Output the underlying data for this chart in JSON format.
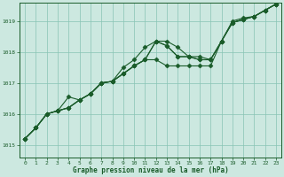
{
  "background_color": "#cce8e0",
  "grid_color": "#88c4b4",
  "line_color": "#1a5c2a",
  "text_color": "#1a5c2a",
  "xlabel": "Graphe pression niveau de la mer (hPa)",
  "xlim": [
    -0.5,
    23.5
  ],
  "ylim": [
    1014.6,
    1019.6
  ],
  "yticks": [
    1015,
    1016,
    1017,
    1018,
    1019
  ],
  "xticks": [
    0,
    1,
    2,
    3,
    4,
    5,
    6,
    7,
    8,
    9,
    10,
    11,
    12,
    13,
    14,
    15,
    16,
    17,
    18,
    19,
    20,
    21,
    22,
    23
  ],
  "series": [
    [
      1015.2,
      1015.55,
      1016.0,
      1016.1,
      1016.55,
      1016.45,
      1016.65,
      1017.0,
      1017.05,
      1017.5,
      1017.75,
      1018.15,
      1018.35,
      1018.35,
      1018.15,
      1017.85,
      1017.85,
      1017.75,
      1018.35,
      1019.0,
      1019.1,
      1019.15,
      1019.35,
      1019.55
    ],
    [
      1015.2,
      1015.55,
      1016.0,
      1016.1,
      1016.2,
      1016.45,
      1016.65,
      1017.0,
      1017.05,
      1017.3,
      1017.55,
      1017.75,
      1017.75,
      1017.55,
      1017.55,
      1017.55,
      1017.55,
      1017.55,
      1018.35,
      1018.95,
      1019.05,
      1019.15,
      1019.35,
      1019.55
    ],
    [
      1015.2,
      1015.55,
      1016.0,
      1016.1,
      1016.2,
      1016.45,
      1016.65,
      1017.0,
      1017.05,
      1017.3,
      1017.55,
      1017.75,
      1018.35,
      1018.2,
      1017.85,
      1017.85,
      1017.75,
      1017.75,
      1018.35,
      1018.95,
      1019.05,
      1019.15,
      1019.35,
      1019.55
    ],
    [
      1015.2,
      1015.55,
      1016.0,
      1016.1,
      1016.2,
      1016.45,
      1016.65,
      1017.0,
      1017.05,
      1017.3,
      1017.55,
      1017.75,
      1018.35,
      1018.2,
      1017.85,
      1017.85,
      1017.75,
      1017.75,
      1018.35,
      1018.95,
      1019.05,
      1019.15,
      1019.35,
      1019.55
    ]
  ],
  "marker": "D",
  "markersize": 2.5,
  "linewidth": 0.8
}
